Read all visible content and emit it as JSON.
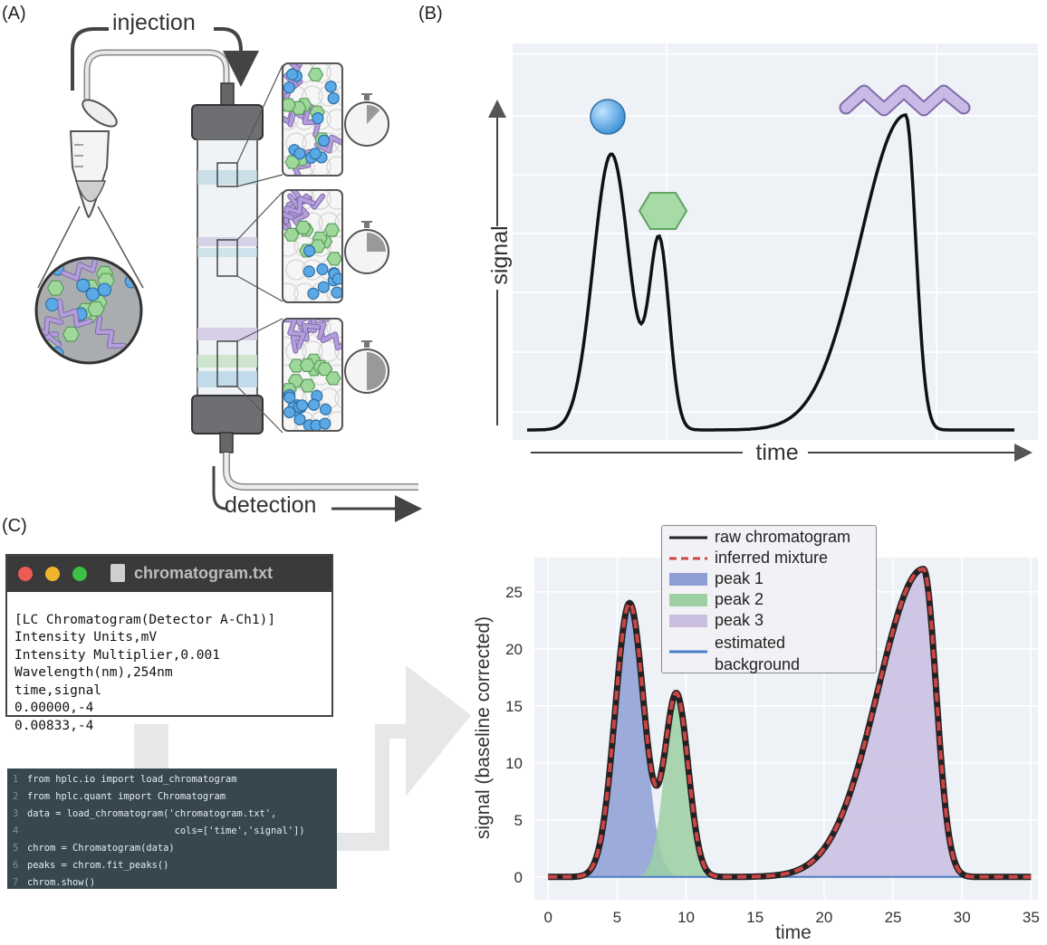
{
  "panels": {
    "a": "(A)",
    "b": "(B)",
    "c": "(C)"
  },
  "panel_a": {
    "injection_label": "injection",
    "detection_label": "detection"
  },
  "panel_b": {
    "ylabel": "signal",
    "xlabel": "time"
  },
  "file": {
    "name": "chromatogram.txt",
    "lines": [
      "[LC Chromatogram(Detector A-Ch1)]",
      "Intensity Units,mV",
      "Intensity Multiplier,0.001",
      "Wavelength(nm),254nm",
      "time,signal",
      "0.00000,-4",
      "0.00833,-4"
    ]
  },
  "code": {
    "lines": [
      "from hplc.io import load_chromatogram",
      "from hplc.quant import Chromatogram",
      "data = load_chromatogram('chromatogram.txt',",
      "                          cols=['time','signal'])",
      "chrom = Chromatogram(data)",
      "peaks = chrom.fit_peaks()",
      "chrom.show()"
    ]
  },
  "legend": {
    "raw": "raw chromatogram",
    "inferred": "inferred mixture",
    "peak1": "peak 1",
    "peak2": "peak 2",
    "peak3": "peak 3",
    "bg_line1": "estimated",
    "bg_line2": "background"
  },
  "colors": {
    "peak1": "#8e9fd6",
    "peak2": "#9ccfa3",
    "peak3": "#c9bde0",
    "raw": "#222222",
    "inferred": "#cc4444",
    "background": "#4a7fc8",
    "blue_bead": "#5aa9e6",
    "green_bead": "#9fd89b",
    "purple_chain": "#b39ddb"
  },
  "chart_data": {
    "type": "area",
    "xlabel": "time",
    "ylabel": "signal (baseline corrected)",
    "xticks": [
      "0",
      "5",
      "10",
      "15",
      "20",
      "25",
      "30",
      "35"
    ],
    "yticks": [
      "0",
      "5",
      "10",
      "15",
      "20",
      "25"
    ],
    "xlim": [
      -1,
      35.5
    ],
    "ylim": [
      -2,
      28
    ],
    "grid": true,
    "legend_position": "top-center",
    "series": [
      {
        "name": "peak 1",
        "center": 5.9,
        "height": 24,
        "sigma": 1.05
      },
      {
        "name": "peak 2",
        "center": 9.3,
        "height": 16,
        "sigma": 0.85
      },
      {
        "name": "peak 3",
        "center": 27.2,
        "height": 27,
        "sigma": 3.3,
        "skewed": true
      }
    ],
    "background": 0
  }
}
